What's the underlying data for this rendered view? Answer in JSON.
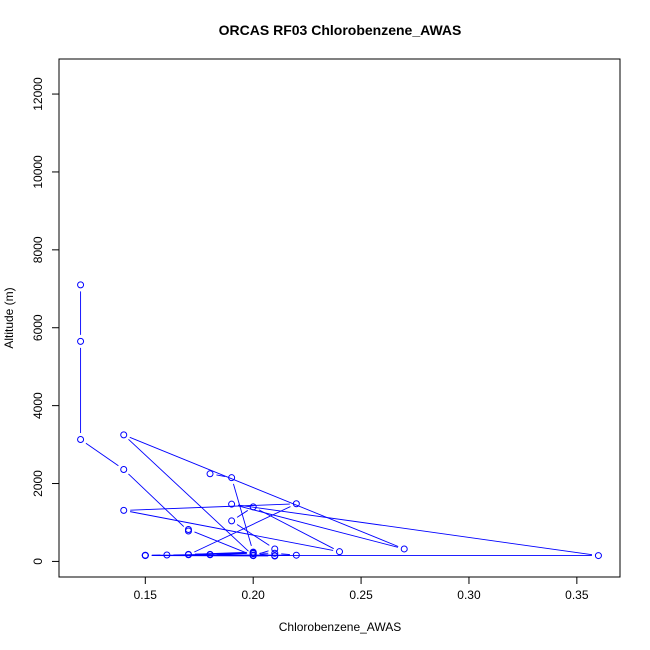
{
  "chart_data": {
    "type": "line",
    "title": "ORCAS RF03 Chlorobenzene_AWAS",
    "xlabel": "Chlorobenzene_AWAS",
    "ylabel": "Altitude (m)",
    "xlim": [
      0.11,
      0.37
    ],
    "ylim": [
      -400,
      12900
    ],
    "x_ticks": [
      0.15,
      0.2,
      0.25,
      0.3,
      0.35
    ],
    "x_tick_labels": [
      "0.15",
      "0.20",
      "0.25",
      "0.30",
      "0.35"
    ],
    "y_ticks": [
      0,
      2000,
      4000,
      6000,
      8000,
      10000,
      12000
    ],
    "y_tick_labels": [
      "0",
      "2000",
      "4000",
      "6000",
      "8000",
      "10000",
      "12000"
    ],
    "color": "#0000ff",
    "series": [
      {
        "x": [
          0.12,
          0.12,
          0.12,
          0.14,
          0.17,
          0.17,
          0.2,
          0.2,
          0.15,
          0.15,
          0.16,
          0.18,
          0.18,
          0.2,
          0.21,
          0.22,
          0.17,
          0.22,
          0.14,
          0.24,
          0.2,
          0.19,
          0.21,
          0.2,
          0.14,
          0.27,
          0.19,
          0.36,
          0.15,
          0.21,
          0.21,
          0.2,
          0.2,
          0.17,
          0.2,
          0.19,
          0.18
        ],
        "y": [
          7100,
          5650,
          3130,
          2360,
          780,
          820,
          150,
          160,
          160,
          155,
          165,
          180,
          170,
          210,
          210,
          160,
          170,
          1480,
          1310,
          250,
          1400,
          1040,
          320,
          150,
          3250,
          320,
          1470,
          150,
          150,
          140,
          150,
          200,
          220,
          180,
          240,
          2150,
          2250
        ]
      }
    ]
  }
}
